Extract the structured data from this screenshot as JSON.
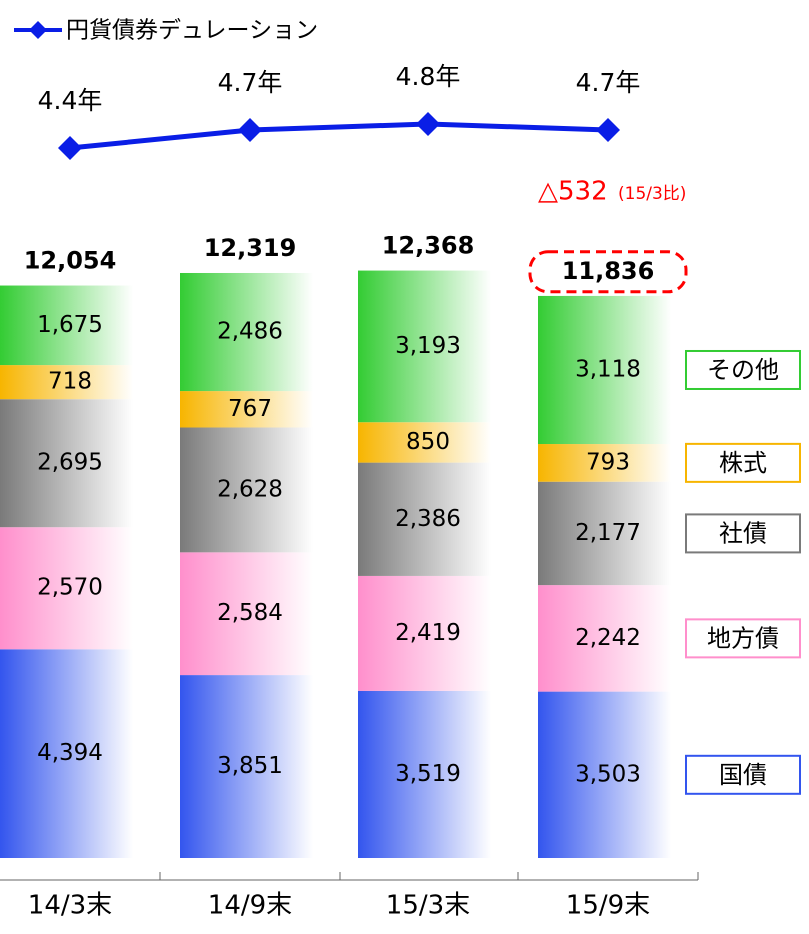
{
  "chart_data": {
    "type": "stacked_bar_line",
    "categories": [
      "14/3末",
      "14/9末",
      "15/3末",
      "15/9末"
    ],
    "series": [
      {
        "name": "国債",
        "color": "#3355ee",
        "values": [
          4394,
          3851,
          3519,
          3503
        ],
        "value_labels": [
          "4,394",
          "3,851",
          "3,519",
          "3,503"
        ]
      },
      {
        "name": "地方債",
        "color": "#ff8fcc",
        "values": [
          2570,
          2584,
          2419,
          2242
        ],
        "value_labels": [
          "2,570",
          "2,584",
          "2,419",
          "2,242"
        ]
      },
      {
        "name": "社債",
        "color": "#7a7a7a",
        "values": [
          2695,
          2628,
          2386,
          2177
        ],
        "value_labels": [
          "2,695",
          "2,628",
          "2,386",
          "2,177"
        ]
      },
      {
        "name": "株式",
        "color": "#f7b500",
        "values": [
          718,
          767,
          850,
          793
        ],
        "value_labels": [
          "718",
          "767",
          "850",
          "793"
        ]
      },
      {
        "name": "その他",
        "color": "#33cc33",
        "values": [
          1675,
          2486,
          3193,
          3118
        ],
        "value_labels": [
          "1,675",
          "2,486",
          "3,193",
          "3,118"
        ]
      }
    ],
    "totals": [
      12054,
      12319,
      12368,
      11836
    ],
    "total_labels": [
      "12,054",
      "12,319",
      "12,368",
      "11,836"
    ],
    "line": {
      "name": "円貨債券デュレーション",
      "color": "#0a1ee6",
      "values": [
        4.4,
        4.7,
        4.8,
        4.7
      ],
      "value_labels": [
        "4.4年",
        "4.7年",
        "4.8年",
        "4.7年"
      ]
    },
    "annotation": {
      "text": "△532",
      "note": "(15/3比)",
      "color": "#ff0000"
    }
  }
}
